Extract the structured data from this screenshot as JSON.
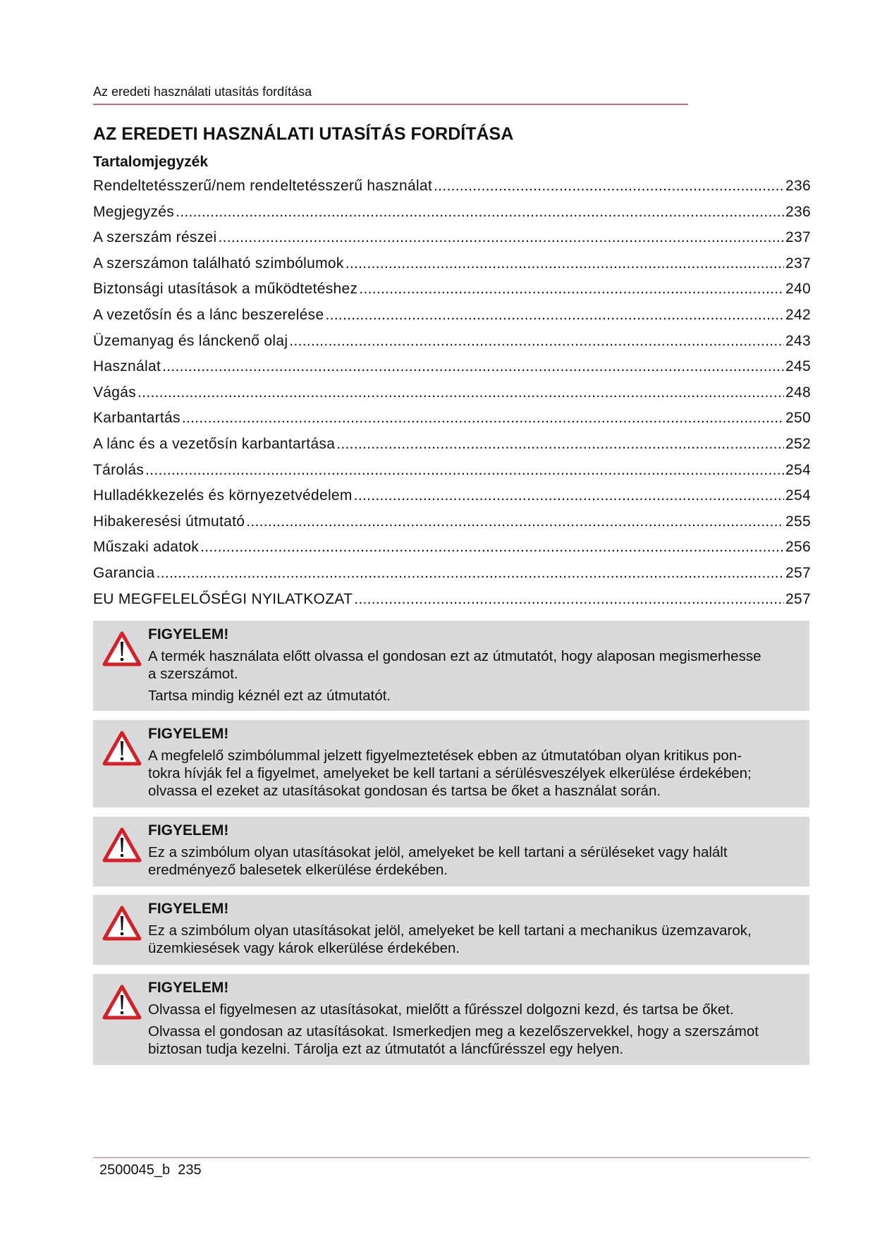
{
  "header": {
    "running_title": "Az eredeti használati utasítás fordítása"
  },
  "title": "AZ EREDETI HASZNÁLATI UTASÍTÁS FORDÍTÁSA",
  "toc_heading": "Tartalomjegyzék",
  "toc": [
    {
      "label": "Rendeltetésszerű/nem rendeltetésszerű használat",
      "page": "236"
    },
    {
      "label": "Megjegyzés",
      "page": "236"
    },
    {
      "label": "A szerszám részei",
      "page": "237"
    },
    {
      "label": "A szerszámon található szimbólumok",
      "page": "237"
    },
    {
      "label": "Biztonsági utasítások a működtetéshez",
      "page": "240"
    },
    {
      "label": "A vezetősín és a lánc beszerelése",
      "page": "242"
    },
    {
      "label": "Üzemanyag és lánckenő olaj",
      "page": "243"
    },
    {
      "label": "Használat",
      "page": "245"
    },
    {
      "label": "Vágás",
      "page": "248"
    },
    {
      "label": "Karbantartás",
      "page": "250"
    },
    {
      "label": "A lánc és a vezetősín karbantartása",
      "page": "252"
    },
    {
      "label": "Tárolás",
      "page": "254"
    },
    {
      "label": "Hulladékkezelés és környezetvédelem",
      "page": "254"
    },
    {
      "label": "Hibakeresési útmutató",
      "page": "255"
    },
    {
      "label": "Műszaki adatok",
      "page": "256"
    },
    {
      "label": "Garancia",
      "page": "257"
    },
    {
      "label": "EU MEGFELELŐSÉGI NYILATKOZAT",
      "page": "257"
    }
  ],
  "warnings": [
    {
      "title": "FIGYELEM!",
      "paragraphs": [
        [
          "A termék használata előtt olvassa el gondosan ezt az útmutatót, hogy alaposan megismerhesse",
          "a szerszámot."
        ],
        [
          "Tartsa mindig kéznél ezt az útmutatót."
        ]
      ]
    },
    {
      "title": "FIGYELEM!",
      "paragraphs": [
        [
          "A megfelelő szimbólummal jelzett figyelmeztetések ebben az útmutatóban olyan kritikus pon-",
          "tokra hívják fel a figyelmet, amelyeket be kell tartani a sérülésveszélyek elkerülése érdekében;",
          "olvassa el ezeket az utasításokat gondosan és tartsa be őket a használat során."
        ]
      ]
    },
    {
      "title": "FIGYELEM!",
      "paragraphs": [
        [
          "Ez a szimbólum olyan utasításokat  jelöl,  amelyeket be  kell tartani  a  sérüléseket vagy  halált",
          "eredményező balesetek elkerülése érdekében."
        ]
      ]
    },
    {
      "title": "FIGYELEM!",
      "paragraphs": [
        [
          "Ez a szimbólum olyan utasításokat jelöl, amelyeket be kell tartani a mechanikus üzemzavarok,",
          "üzemkiesések vagy károk elkerülése érdekében."
        ]
      ]
    },
    {
      "title": "FIGYELEM!",
      "paragraphs": [
        [
          "Olvassa el figyelmesen az utasításokat, mielőtt a fűrésszel dolgozni kezd, és tartsa be őket."
        ],
        [
          "Olvassa el gondosan az utasításokat. Ismerkedjen meg a kezelőszervekkel, hogy a szerszámot",
          "biztosan tudja kezelni. Tárolja ezt az útmutatót a láncfűrésszel egy helyen."
        ]
      ]
    }
  ],
  "footer": {
    "doc_code": "2500045_b",
    "page_number": "235"
  },
  "colors": {
    "rule": "#c0707a",
    "box": "#d9dadb",
    "warning_red": "#d42027"
  }
}
